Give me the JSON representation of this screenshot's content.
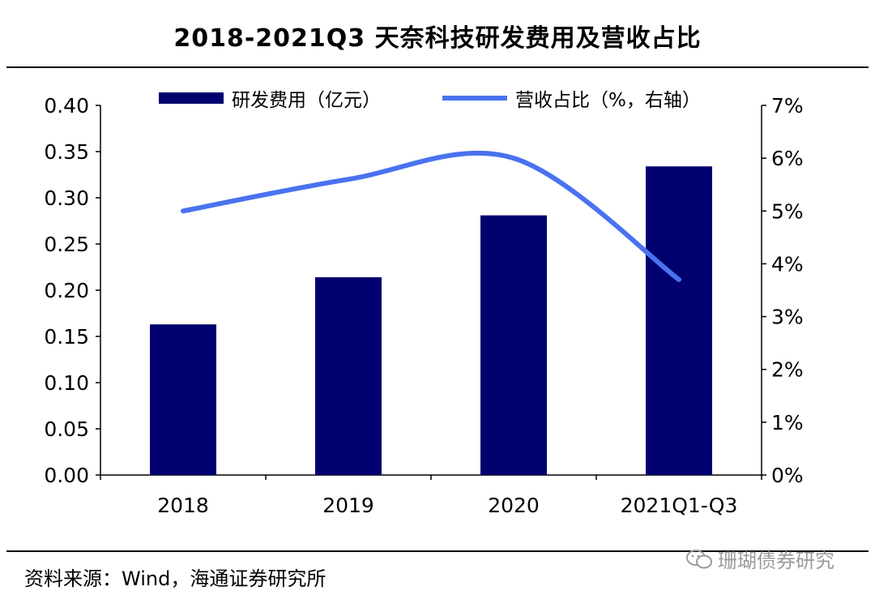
{
  "title": "2018-2021Q3 天奈科技研发费用及营收占比",
  "source": "资料来源：Wind，海通证券研究所",
  "watermark": "珊瑚债券研究",
  "colors": {
    "bar": "#00006e",
    "line": "#4a72f0"
  },
  "chart_data": {
    "type": "bar",
    "categories": [
      "2018",
      "2019",
      "2020",
      "2021Q1-Q3"
    ],
    "series": [
      {
        "name": "研发费用（亿元）",
        "type": "bar",
        "axis": "left",
        "values": [
          0.163,
          0.214,
          0.281,
          0.334
        ]
      },
      {
        "name": "营收占比（%，右轴）",
        "type": "line",
        "axis": "right",
        "values": [
          5.0,
          5.6,
          6.0,
          3.7
        ]
      }
    ],
    "ylim_left": [
      0,
      0.4
    ],
    "yticks_left": [
      "0.00",
      "0.05",
      "0.10",
      "0.15",
      "0.20",
      "0.25",
      "0.30",
      "0.35",
      "0.40"
    ],
    "ylim_right": [
      0,
      7
    ],
    "yticks_right": [
      "0%",
      "1%",
      "2%",
      "3%",
      "4%",
      "5%",
      "6%",
      "7%"
    ],
    "legend_position": "top",
    "grid": false
  }
}
